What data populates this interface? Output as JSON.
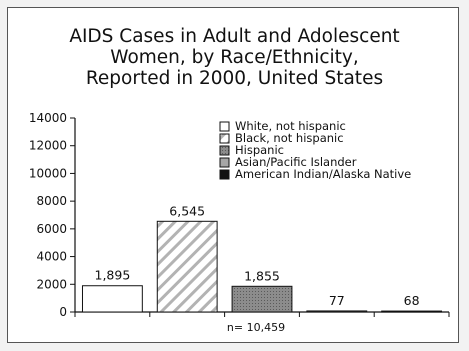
{
  "chart_data": {
    "type": "bar",
    "title_lines": [
      "AIDS Cases in Adult and Adolescent",
      "Women, by Race/Ethnicity,",
      "Reported in 2000, United States"
    ],
    "categories": [
      "White, not hispanic",
      "Black, not hispanic",
      "Hispanic",
      "Asian/Pacific Islander",
      "American Indian/Alaska Native"
    ],
    "values": [
      1895,
      6545,
      1855,
      77,
      68
    ],
    "data_labels": [
      "1,895",
      "6,545",
      "1,855",
      "77",
      "68"
    ],
    "ylim": [
      0,
      14000
    ],
    "yticks": [
      0,
      2000,
      4000,
      6000,
      8000,
      10000,
      12000,
      14000
    ],
    "ytick_labels": [
      "0",
      "2000",
      "4000",
      "6000",
      "8000",
      "10000",
      "12000",
      "14000"
    ],
    "xlabel": "n= 10,459",
    "ylabel": "",
    "legend_position": "top-right",
    "grid": false,
    "series_styles": [
      {
        "fill": "#ffffff",
        "pattern": "none"
      },
      {
        "fill": "#ffffff",
        "pattern": "diagonal-hatch"
      },
      {
        "fill": "#8c8c8c",
        "pattern": "dark-dots"
      },
      {
        "fill": "#a6a6a6",
        "pattern": "none"
      },
      {
        "fill": "#111111",
        "pattern": "none"
      }
    ]
  }
}
